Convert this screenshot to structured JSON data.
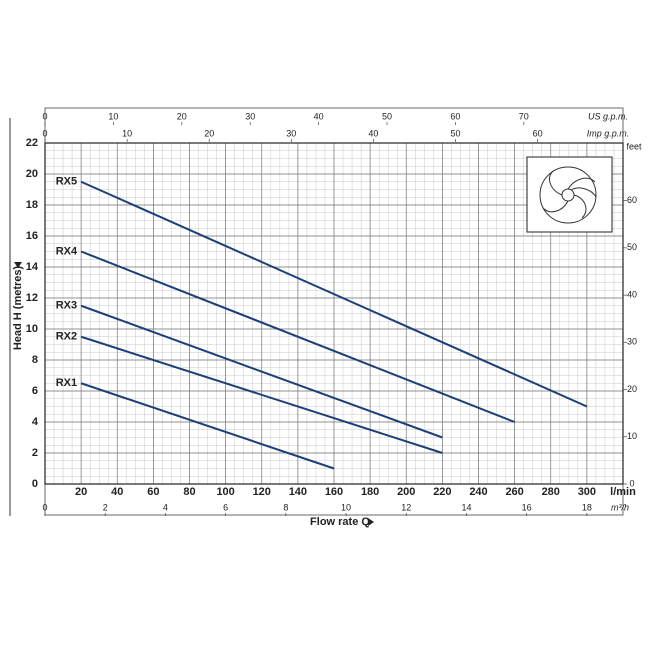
{
  "chart_data": {
    "type": "line",
    "y_label": "Head H (metres)",
    "x_label": "Flow rate Q",
    "x_unit": "l/min",
    "xlim": [
      0,
      320
    ],
    "xticks": [
      20,
      40,
      60,
      80,
      100,
      120,
      140,
      160,
      180,
      200,
      220,
      240,
      260,
      280,
      300
    ],
    "ylim": [
      0,
      22
    ],
    "yticks": [
      0,
      2,
      4,
      6,
      8,
      10,
      12,
      14,
      16,
      18,
      20,
      22
    ],
    "grid": true,
    "secondary_axes": [
      {
        "side": "top",
        "label": "US g.p.m.",
        "lim": [
          0,
          84.5
        ],
        "ticks": [
          0,
          10,
          20,
          30,
          40,
          50,
          60,
          70
        ]
      },
      {
        "side": "top",
        "label": "Imp g.p.m.",
        "lim": [
          0,
          70.4
        ],
        "ticks": [
          0,
          10,
          20,
          30,
          40,
          50,
          60
        ]
      },
      {
        "side": "bottom",
        "label": "m³/h",
        "lim": [
          0,
          19.2
        ],
        "ticks": [
          0,
          2,
          4,
          6,
          8,
          10,
          12,
          14,
          16,
          18
        ]
      },
      {
        "side": "right",
        "label": "feet",
        "lim": [
          0,
          72.2
        ],
        "ticks": [
          0,
          10,
          20,
          30,
          40,
          50,
          60
        ]
      }
    ],
    "series": [
      {
        "name": "RX1",
        "color": "#1d3f78",
        "x": [
          20,
          160
        ],
        "values": [
          6.5,
          1
        ]
      },
      {
        "name": "RX2",
        "color": "#1d3f78",
        "x": [
          20,
          220
        ],
        "values": [
          9.5,
          2
        ]
      },
      {
        "name": "RX3",
        "color": "#1d3f78",
        "x": [
          20,
          220
        ],
        "values": [
          11.5,
          3
        ]
      },
      {
        "name": "RX4",
        "color": "#1d3f78",
        "x": [
          20,
          260
        ],
        "values": [
          15,
          4
        ]
      },
      {
        "name": "RX5",
        "color": "#1d3f78",
        "x": [
          20,
          300
        ],
        "values": [
          19.5,
          5
        ]
      }
    ]
  }
}
